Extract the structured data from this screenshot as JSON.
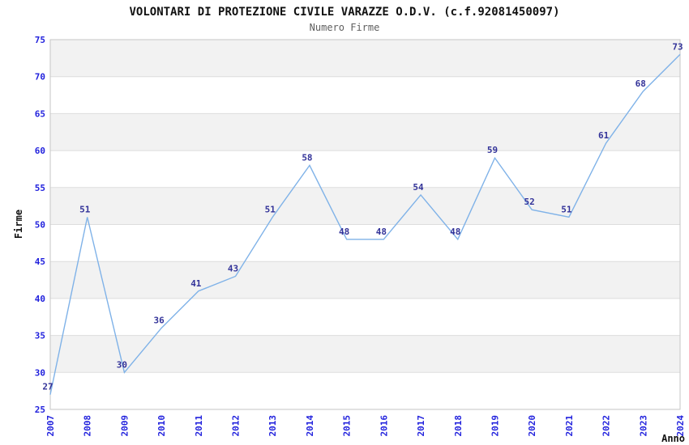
{
  "chart_data": {
    "type": "line",
    "title": "VOLONTARI DI PROTEZIONE CIVILE VARAZZE O.D.V. (c.f.92081450097)",
    "subtitle": "Numero Firme",
    "xlabel": "Anno",
    "ylabel": "Firme",
    "categories": [
      "2007",
      "2008",
      "2009",
      "2010",
      "2011",
      "2012",
      "2013",
      "2014",
      "2015",
      "2016",
      "2017",
      "2018",
      "2019",
      "2020",
      "2021",
      "2022",
      "2023",
      "2024"
    ],
    "values": [
      27,
      51,
      30,
      36,
      41,
      43,
      51,
      58,
      48,
      48,
      54,
      48,
      59,
      52,
      51,
      61,
      68,
      73
    ],
    "ylim": [
      25,
      75
    ],
    "ytick_step": 5,
    "legend": "none",
    "grid": "horizontal",
    "banded_background": true,
    "point_labels_shown": true,
    "colors": {
      "line": "#7fb2e8",
      "tick_label": "#2222dd",
      "point_label": "#333399",
      "band": "#f2f2f2",
      "gridline": "#dddddd",
      "plot_border": "#c6c6c6",
      "title": "#111111",
      "subtitle": "#5f5f5f",
      "axis_title": "#111111",
      "background": "#ffffff"
    }
  }
}
